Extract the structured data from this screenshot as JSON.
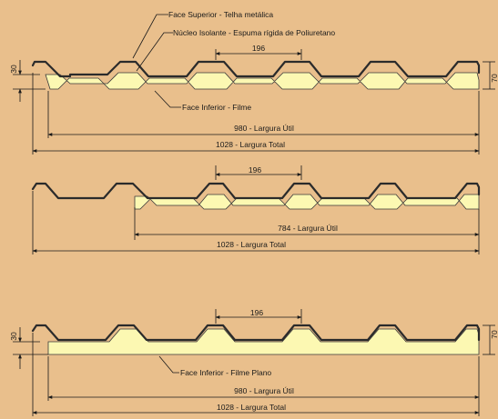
{
  "colors": {
    "background": "#e9bf8c",
    "core": "#fcf8b2",
    "steel": "#2b2b2b",
    "line": "#1a1a1a"
  },
  "labels": {
    "face_superior": "Face Superior - Telha metálica",
    "nucleo": "Núcleo Isolante - Espuma rígida de Poliuretano",
    "face_inferior_filme": "Face Inferior - Filme",
    "face_inferior_plano": "Face Inferior - Filme Plano"
  },
  "panel1": {
    "pitch": "196",
    "width_util": "980 - Largura Útil",
    "width_total": "1028 - Largura Total",
    "height_left": "30",
    "height_right": "70"
  },
  "panel2": {
    "pitch": "196",
    "width_util": "784 - Largura Útil",
    "width_total": "1028 - Largura Total"
  },
  "panel3": {
    "pitch": "196",
    "width_util": "980 - Largura Útil",
    "width_total": "1028 - Largura Total",
    "height_left": "30",
    "height_right": "70"
  }
}
